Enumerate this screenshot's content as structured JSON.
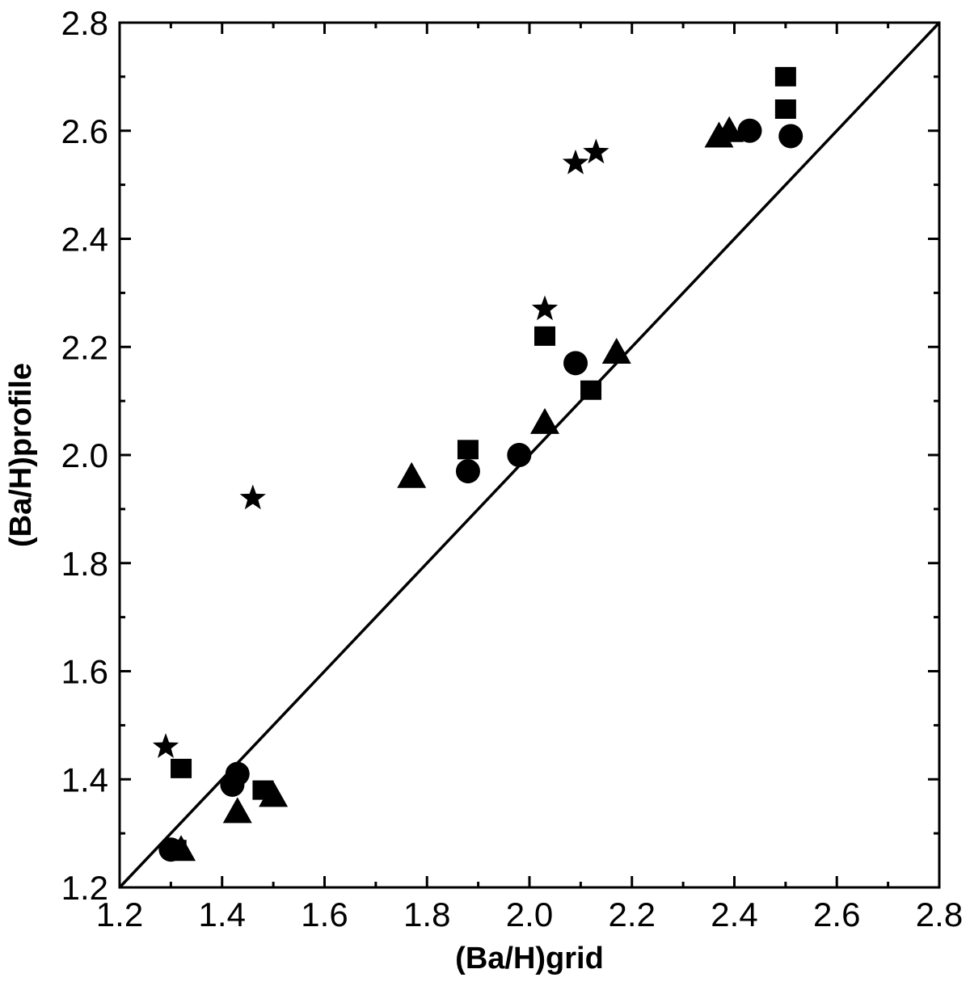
{
  "chart_data": {
    "type": "scatter",
    "title": "",
    "xlabel": "(Ba/H)grid",
    "ylabel": "(Ba/H)profile",
    "xlim": [
      1.2,
      2.8
    ],
    "ylim": [
      1.2,
      2.8
    ],
    "xticks": [
      "1.2",
      "1.4",
      "1.6",
      "1.8",
      "2.0",
      "2.2",
      "2.4",
      "2.6",
      "2.8"
    ],
    "yticks": [
      "1.2",
      "1.4",
      "1.6",
      "1.8",
      "2.0",
      "2.2",
      "2.4",
      "2.6",
      "2.8"
    ],
    "grid": false,
    "legend": "none",
    "reference_line": {
      "from": [
        1.2,
        1.2
      ],
      "to": [
        2.8,
        2.8
      ]
    },
    "series": [
      {
        "marker": "square",
        "points": [
          [
            1.32,
            1.42
          ],
          [
            1.31,
            1.27
          ],
          [
            1.48,
            1.38
          ],
          [
            1.88,
            2.01
          ],
          [
            2.03,
            2.22
          ],
          [
            2.12,
            2.12
          ],
          [
            2.5,
            2.7
          ],
          [
            2.5,
            2.64
          ]
        ]
      },
      {
        "marker": "circle",
        "points": [
          [
            1.3,
            1.27
          ],
          [
            1.42,
            1.39
          ],
          [
            1.43,
            1.41
          ],
          [
            1.88,
            1.97
          ],
          [
            1.98,
            2.0
          ],
          [
            2.09,
            2.17
          ],
          [
            2.43,
            2.6
          ],
          [
            2.51,
            2.59
          ]
        ]
      },
      {
        "marker": "triangle",
        "points": [
          [
            1.32,
            1.27
          ],
          [
            1.43,
            1.34
          ],
          [
            1.5,
            1.37
          ],
          [
            1.77,
            1.96
          ],
          [
            2.03,
            2.06
          ],
          [
            2.17,
            2.19
          ],
          [
            2.37,
            2.59
          ],
          [
            2.39,
            2.6
          ]
        ]
      },
      {
        "marker": "star",
        "points": [
          [
            1.29,
            1.46
          ],
          [
            1.46,
            1.92
          ],
          [
            2.03,
            2.27
          ],
          [
            2.09,
            2.54
          ],
          [
            2.13,
            2.56
          ]
        ]
      }
    ],
    "colors": {
      "marker": "#000000",
      "axis": "#000000",
      "background": "#ffffff"
    }
  }
}
